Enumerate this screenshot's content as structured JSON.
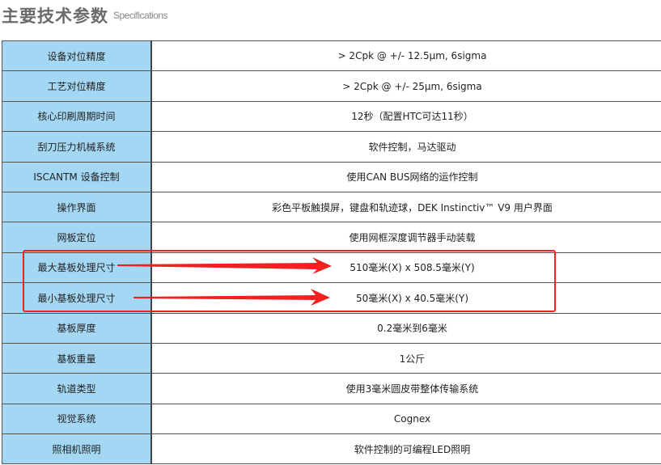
{
  "header": {
    "title": "主要技术参数",
    "subtitle": "Specifications"
  },
  "rows": [
    {
      "k": "设备对位精度",
      "v": "> 2Cpk @ +/- 12.5μm, 6sigma"
    },
    {
      "k": "工艺对位精度",
      "v": "> 2Cpk @ +/- 25μm, 6sigma"
    },
    {
      "k": "核心印刷周期时间",
      "v": "12秒（配置HTC可达11秒）"
    },
    {
      "k": "刮刀压力机械系统",
      "v": "软件控制，马达驱动"
    },
    {
      "k": "ISCANTM 设备控制",
      "v": "使用CAN BUS网络的运作控制"
    },
    {
      "k": "操作界面",
      "v": "彩色平板触摸屏，键盘和轨迹球，DEK Instinctiv™ V9 用户界面"
    },
    {
      "k": "网板定位",
      "v": "使用网框深度调节器手动装载"
    },
    {
      "k": "最大基板处理尺寸",
      "v": "510毫米(X) x 508.5毫米(Y)"
    },
    {
      "k": "最小基板处理尺寸",
      "v": "50毫米(X) x 40.5毫米(Y)"
    },
    {
      "k": "基板厚度",
      "v": "0.2毫米到6毫米"
    },
    {
      "k": "基板重量",
      "v": "1公斤"
    },
    {
      "k": "轨道类型",
      "v": "使用3毫米圆皮带整体传输系统"
    },
    {
      "k": "视觉系统",
      "v": "Cognex"
    },
    {
      "k": "照相机照明",
      "v": "软件控制的可编程LED照明"
    }
  ],
  "annotation": {
    "color": "#f32020"
  }
}
